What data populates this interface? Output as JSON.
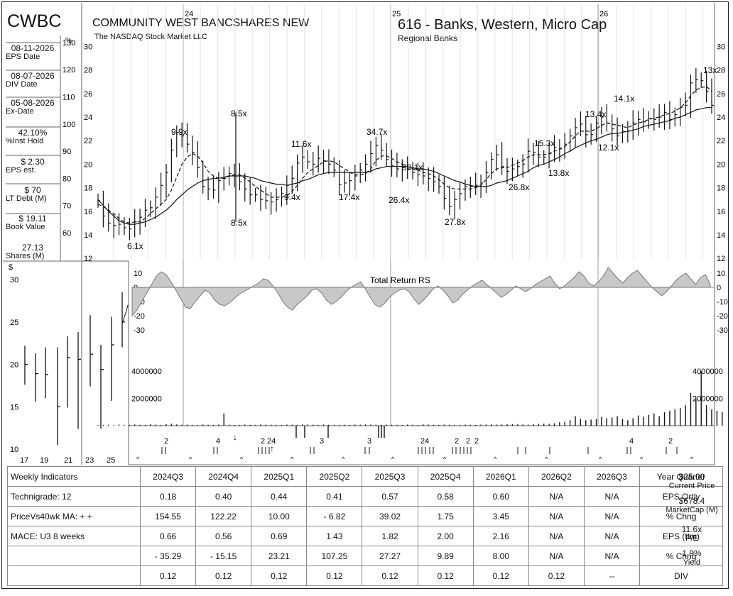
{
  "header": {
    "ticker": "CWBC",
    "company": "COMMUNITY WEST BANCSHARES NEW",
    "exchange": "The NASDAQ Stock Market LLC",
    "group": "616 - Banks, Western, Micro Cap",
    "subgroup": "Regional Banks"
  },
  "sidebar": [
    {
      "value": "08-11-2026",
      "label": "EPS Date"
    },
    {
      "value": "08-07-2026",
      "label": "DIV Date"
    },
    {
      "value": "05-08-2026",
      "label": "Ex-Date"
    },
    {
      "value": "42.10%",
      "label": "%Inst Hold"
    },
    {
      "value": "$ 2.30",
      "label": "EPS est."
    },
    {
      "value": "$ 70",
      "label": "LT Debt (M)"
    },
    {
      "value": "$ 19.11",
      "label": "Book Value"
    },
    {
      "value": "27.13",
      "label": "Shares (M)"
    }
  ],
  "chart_data": [
    {
      "type": "line",
      "name": "weekly price",
      "x_year_markers": [
        "24",
        "25",
        "26"
      ],
      "price_axis": [
        12,
        14,
        16,
        18,
        20,
        22,
        24,
        26,
        28,
        30
      ],
      "pct_axis": [
        60,
        70,
        80,
        90,
        100,
        110,
        120,
        130
      ],
      "pct_axis_unit": "%",
      "series": [
        {
          "values": [
            16.9,
            15.6,
            15.0,
            14.8,
            14.9,
            14.6,
            14.5,
            15.1,
            15.5,
            16.1,
            16.3,
            17.2,
            18.2,
            19.3,
            21.2,
            22.7,
            22.4,
            21.7,
            21.0,
            19.7,
            18.1,
            17.9,
            17.8,
            18.6,
            18.8,
            19.2,
            19.0,
            18.5,
            17.9,
            17.4,
            17.4,
            17.0,
            16.9,
            16.8,
            17.0,
            17.5,
            18.2,
            18.8,
            20.1,
            20.6,
            20.2,
            20.0,
            20.5,
            20.3,
            20.0,
            19.5,
            18.3,
            18.4,
            18.6,
            19.0,
            19.5,
            20.0,
            20.9,
            21.6,
            21.2,
            20.4,
            19.9,
            19.6,
            19.7,
            19.6,
            19.3,
            19.1,
            19.0,
            18.8,
            18.5,
            18.1,
            17.1,
            16.4,
            17.0,
            17.5,
            18.1,
            18.1,
            18.2,
            18.4,
            19.3,
            20.4,
            20.8,
            19.8,
            19.4,
            19.6,
            19.8,
            20.0,
            21.1,
            21.0,
            20.6,
            20.6,
            20.9,
            21.4,
            21.3,
            21.7,
            22.4,
            23.1,
            23.4,
            22.5,
            22.5,
            23.5,
            24.0,
            23.5,
            23.0,
            22.4,
            22.8,
            22.8,
            23.5,
            23.8,
            23.6,
            23.9,
            23.8,
            24.0,
            24.4,
            23.8,
            24.2,
            24.8,
            25.0,
            26.9,
            27.2,
            27.1,
            26.2,
            25.0
          ]
        },
        {
          "values": [
            16.6,
            16.4,
            16.1,
            15.8,
            15.4,
            15.1,
            15.0,
            15.1,
            15.1,
            15.4,
            15.8,
            16.2,
            16.6,
            17.0,
            17.8,
            18.9,
            20.0,
            20.6,
            20.9,
            20.7,
            20.1,
            19.4,
            19.0,
            18.8,
            18.8,
            19.0,
            19.1,
            19.1,
            18.8,
            18.5,
            18.1,
            17.8,
            17.5,
            17.2,
            17.2,
            17.2,
            17.3,
            17.7,
            18.2,
            18.8,
            19.3,
            19.6,
            19.9,
            20.2,
            20.3,
            20.2,
            19.9,
            19.6,
            19.3,
            19.1,
            19.1,
            19.2,
            19.6,
            20.3,
            20.7,
            20.7,
            20.5,
            20.2,
            20.0,
            19.8,
            19.6,
            19.5,
            19.3,
            19.2,
            19.0,
            18.7,
            18.3,
            18.0,
            17.9,
            17.9,
            17.9,
            17.9,
            18.0,
            18.2,
            18.7,
            19.2,
            19.6,
            19.7,
            19.7,
            19.9,
            20.1,
            20.3,
            20.6,
            20.8,
            20.8,
            20.8,
            20.9,
            21.1,
            21.3,
            21.5,
            21.9,
            22.4,
            22.8,
            22.8,
            22.8,
            23.0,
            23.3,
            23.5,
            23.4,
            23.3,
            23.2,
            23.1,
            23.3,
            23.5,
            23.6,
            23.8,
            23.9,
            24.0,
            24.2,
            24.3,
            24.5,
            24.8,
            25.2,
            25.8,
            26.3,
            26.5,
            26.6,
            26.2
          ]
        },
        {
          "values": [
            17.0,
            16.5,
            16.0,
            15.6,
            15.2,
            15.0,
            14.9,
            14.9,
            15.0,
            15.1,
            15.3,
            15.5,
            15.8,
            16.1,
            16.5,
            17.0,
            17.4,
            17.8,
            18.1,
            18.4,
            18.6,
            18.7,
            18.8,
            18.8,
            18.9,
            19.0,
            19.0,
            19.0,
            19.0,
            18.9,
            18.8,
            18.6,
            18.5,
            18.4,
            18.3,
            18.3,
            18.2,
            18.3,
            18.4,
            18.6,
            18.7,
            18.9,
            19.1,
            19.2,
            19.3,
            19.3,
            19.3,
            19.3,
            19.3,
            19.3,
            19.3,
            19.3,
            19.4,
            19.6,
            19.7,
            19.8,
            19.8,
            19.8,
            19.8,
            19.8,
            19.7,
            19.6,
            19.6,
            19.5,
            19.4,
            19.2,
            19.0,
            18.8,
            18.6,
            18.5,
            18.3,
            18.2,
            18.1,
            18.1,
            18.1,
            18.2,
            18.4,
            18.5,
            18.6,
            18.8,
            19.0,
            19.2,
            19.4,
            19.7,
            19.9,
            20.0,
            20.2,
            20.4,
            20.6,
            20.9,
            21.1,
            21.4,
            21.6,
            21.8,
            22.0,
            22.1,
            22.3,
            22.5,
            22.6,
            22.6,
            22.7,
            22.8,
            22.9,
            23.0,
            23.2,
            23.3,
            23.4,
            23.5,
            23.6,
            23.7,
            23.9,
            24.0,
            24.2,
            24.4,
            24.6,
            24.7,
            24.8,
            24.8
          ]
        }
      ],
      "pe_labels": [
        "6.1x",
        "9.9x",
        "8.5x",
        "8.5x",
        "9.4x",
        "11.6x",
        "17.4x",
        "34.7x",
        "26.4x",
        "30.1x",
        "27.8x",
        "26.8x",
        "15.3x",
        "13.8x",
        "13.4x",
        "12.1x",
        "14.1x",
        "13x"
      ]
    },
    {
      "type": "area",
      "title": "Total Return RS",
      "yticks": [
        10,
        0,
        -10,
        -20,
        -30
      ],
      "values": [
        -20,
        -16,
        -10,
        -4,
        2,
        8,
        11,
        9,
        4,
        -2,
        -8,
        -14,
        -15,
        -10,
        -6,
        -2,
        -4,
        -9,
        -12,
        -13,
        -11,
        -8,
        -5,
        -3,
        -1,
        1,
        3,
        6,
        5,
        1,
        -4,
        -10,
        -14,
        -16,
        -12,
        -9,
        -6,
        -2,
        -1,
        -4,
        -9,
        -12,
        -10,
        -7,
        -3,
        0,
        2,
        4,
        -1,
        -7,
        -12,
        -14,
        -11,
        -7,
        -4,
        -2,
        -1,
        -3,
        -8,
        -12,
        -9,
        -5,
        -1,
        1,
        -2,
        -6,
        -11,
        -9,
        -5,
        -2,
        1,
        3,
        5,
        2,
        -1,
        -4,
        -7,
        -5,
        -2,
        1,
        -1,
        -3,
        -1,
        2,
        4,
        6,
        8,
        3,
        -1,
        1,
        4,
        7,
        11,
        8,
        3,
        1,
        4,
        8,
        14,
        10,
        6,
        3,
        7,
        10,
        12,
        8,
        4,
        0,
        -3,
        -6,
        -3,
        1,
        5,
        8,
        10,
        6,
        2,
        7,
        9,
        2
      ]
    },
    {
      "type": "bar",
      "title": "weekly volume",
      "yticks": [
        2000000,
        4000000
      ],
      "ytick_labels": [
        "2000000",
        "4000000"
      ],
      "values": [
        40000,
        60000,
        70000,
        50000,
        80000,
        60000,
        50000,
        90000,
        70000,
        60000,
        100000,
        80000,
        60000,
        110000,
        150000,
        90000,
        70000,
        80000,
        60000,
        50000,
        90000,
        70000,
        60000,
        80000,
        900000,
        70000,
        60000,
        50000,
        80000,
        70000,
        60000,
        90000,
        80000,
        70000,
        60000,
        50000,
        80000,
        70000,
        60000,
        90000,
        80000,
        70000,
        60000,
        80000,
        70000,
        60000,
        50000,
        70000,
        60000,
        80000,
        70000,
        90000,
        80000,
        70000,
        60000,
        80000,
        70000,
        60000,
        50000,
        80000,
        70000,
        60000,
        90000,
        80000,
        70000,
        60000,
        80000,
        70000,
        60000,
        50000,
        80000,
        70000,
        60000,
        80000,
        90000,
        100000,
        80000,
        90000,
        110000,
        120000,
        100000,
        90000,
        80000,
        110000,
        130000,
        150000,
        140000,
        180000,
        250000,
        300000,
        400000,
        700000,
        500000,
        400000,
        450000,
        500000,
        650000,
        550000,
        600000,
        700000,
        500000,
        400000,
        550000,
        750000,
        650000,
        800000,
        900000,
        700000,
        1000000,
        1100000,
        1200000,
        1300000,
        1500000,
        2400000,
        2000000,
        4000000,
        1500000,
        1200000,
        1100000,
        1000000
      ]
    },
    {
      "type": "bar",
      "title": "inset quarterly",
      "y_unit": "$",
      "yticks": [
        10,
        15,
        20,
        25,
        30
      ],
      "xticks": [
        "17",
        "19",
        "21",
        "23",
        "25"
      ],
      "bars": [
        {
          "high": 22.2,
          "low": 17.6,
          "close": 20.0
        },
        {
          "high": 21.3,
          "low": 15.6,
          "close": 18.9
        },
        {
          "high": 22.0,
          "low": 16.0,
          "close": 18.8
        },
        {
          "high": 22.0,
          "low": 10.5,
          "close": 15.0
        },
        {
          "high": 23.3,
          "low": 14.9,
          "close": 20.8
        },
        {
          "high": 23.8,
          "low": 12.4,
          "close": 20.6
        },
        {
          "high": 25.8,
          "low": 17.4,
          "close": 21.2
        },
        {
          "high": 22.3,
          "low": 12.4,
          "close": 19.4
        },
        {
          "high": 25.6,
          "low": 15.7,
          "close": 22.3
        },
        {
          "high": 28.5,
          "low": 22.0,
          "close": 25.0
        }
      ]
    }
  ],
  "markers_row": {
    "labels": [
      "2",
      "4",
      "2",
      "24",
      "3",
      "3",
      "24",
      "2",
      "2",
      "2",
      "4",
      "2"
    ],
    "caret": "^"
  },
  "table": {
    "header": [
      "Weekly Indicators",
      "2024Q3",
      "2024Q4",
      "2025Q1",
      "2025Q2",
      "2025Q3",
      "2025Q4",
      "2026Q1",
      "2026Q2",
      "2026Q3",
      "Year Quarter"
    ],
    "rows": [
      [
        "Technigrade: 12",
        "0.18",
        "0.40",
        "0.44",
        "0.41",
        "0.57",
        "0.58",
        "0.60",
        "N/A",
        "N/A",
        "EPS Qrtly"
      ],
      [
        "PriceVs40wk MA: + +",
        "154.55",
        "122.22",
        "10.00",
        "- 6.82",
        "39.02",
        "1.75",
        "3.45",
        "N/A",
        "N/A",
        "% Chng"
      ],
      [
        "MACE: U3  8 weeks",
        "0.66",
        "0.56",
        "0.69",
        "1.43",
        "1.82",
        "2.00",
        "2.16",
        "N/A",
        "N/A",
        "EPS (ttm)"
      ],
      [
        "",
        "- 35.29",
        "- 15.15",
        "23.21",
        "107.25",
        "27.27",
        "9.89",
        "8.00",
        "N/A",
        "N/A",
        "% Chng"
      ],
      [
        "",
        "0.12",
        "0.12",
        "0.12",
        "0.12",
        "0.12",
        "0.12",
        "0.12",
        "0.12",
        "--",
        "DIV"
      ]
    ]
  },
  "side_stats": {
    "current_price": "$25.00",
    "current_price_label": "Current Price",
    "market_cap": "$678.4",
    "market_cap_label": "MarketCap (M)",
    "pe": "11.6x",
    "pe_label": "P/E",
    "yield": "1.9%",
    "yield_label": "Yield"
  }
}
